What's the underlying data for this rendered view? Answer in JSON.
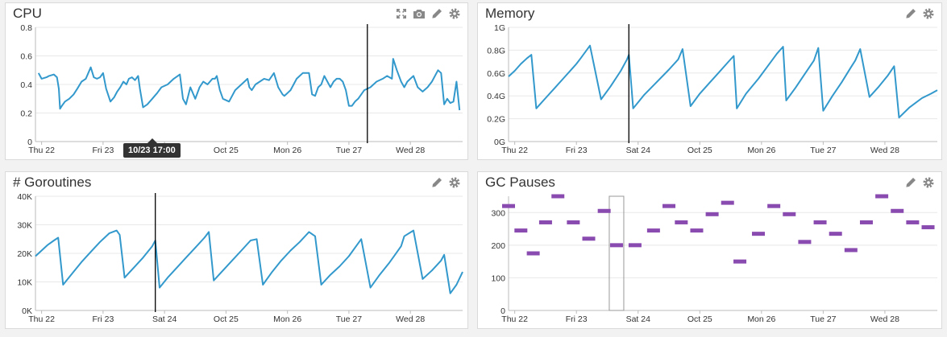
{
  "colors": {
    "line": "#3399cc",
    "bar": "#8a4bb0",
    "grid": "#e8e8e8"
  },
  "panels": {
    "cpu": {
      "title": "CPU",
      "tooltip": "10/23 17:00"
    },
    "memory": {
      "title": "Memory"
    },
    "goroutines": {
      "title": "# Goroutines"
    },
    "gc": {
      "title": "GC Pauses"
    }
  },
  "chart_data": [
    {
      "id": "cpu",
      "type": "line",
      "x_ticks": [
        "Thu 22",
        "Fri 23",
        "Sat 24",
        "Oct 25",
        "Mon 26",
        "Tue 27",
        "Wed 28"
      ],
      "x_tick_days": [
        0,
        1,
        2,
        3,
        4,
        5,
        6
      ],
      "y_ticks": [
        "0",
        "0.2",
        "0.4",
        "0.6",
        "0.8"
      ],
      "y_tick_values": [
        0,
        0.2,
        0.4,
        0.6,
        0.8
      ],
      "ylim": [
        0,
        0.8
      ],
      "xlim_days": [
        -0.1,
        6.85
      ],
      "crosshair_day": 5.3,
      "x_days": [
        -0.05,
        0.0,
        0.08,
        0.12,
        0.2,
        0.25,
        0.28,
        0.3,
        0.33,
        0.38,
        0.45,
        0.52,
        0.58,
        0.65,
        0.72,
        0.8,
        0.85,
        0.9,
        0.95,
        1.0,
        1.05,
        1.12,
        1.18,
        1.23,
        1.28,
        1.33,
        1.38,
        1.42,
        1.47,
        1.52,
        1.57,
        1.6,
        1.65,
        1.72,
        1.8,
        1.88,
        1.95,
        2.05,
        2.15,
        2.25,
        2.3,
        2.35,
        2.42,
        2.5,
        2.57,
        2.63,
        2.7,
        2.78,
        2.82,
        2.85,
        2.9,
        2.95,
        3.05,
        3.15,
        3.25,
        3.3,
        3.35,
        3.38,
        3.42,
        3.48,
        3.55,
        3.62,
        3.7,
        3.78,
        3.85,
        3.92,
        3.95,
        4.0,
        4.05,
        4.15,
        4.25,
        4.35,
        4.4,
        4.45,
        4.5,
        4.55,
        4.6,
        4.7,
        4.75,
        4.8,
        4.85,
        4.9,
        4.95,
        5.0,
        5.05,
        5.1,
        5.15,
        5.2,
        5.25,
        5.35,
        5.45,
        5.55,
        5.62,
        5.7,
        5.72,
        5.78,
        5.85,
        5.9,
        5.95,
        6.0,
        6.05,
        6.12,
        6.2,
        6.28,
        6.35,
        6.4,
        6.45,
        6.5,
        6.55,
        6.6,
        6.65,
        6.7,
        6.75,
        6.8
      ],
      "values": [
        0.48,
        0.44,
        0.45,
        0.46,
        0.47,
        0.45,
        0.37,
        0.23,
        0.25,
        0.28,
        0.3,
        0.33,
        0.37,
        0.42,
        0.44,
        0.52,
        0.45,
        0.44,
        0.45,
        0.48,
        0.37,
        0.28,
        0.31,
        0.35,
        0.38,
        0.42,
        0.4,
        0.44,
        0.45,
        0.43,
        0.46,
        0.37,
        0.24,
        0.26,
        0.3,
        0.34,
        0.38,
        0.4,
        0.44,
        0.47,
        0.3,
        0.26,
        0.38,
        0.3,
        0.38,
        0.42,
        0.4,
        0.44,
        0.44,
        0.46,
        0.36,
        0.3,
        0.28,
        0.36,
        0.4,
        0.42,
        0.44,
        0.38,
        0.36,
        0.4,
        0.42,
        0.44,
        0.43,
        0.48,
        0.38,
        0.33,
        0.32,
        0.34,
        0.36,
        0.44,
        0.48,
        0.48,
        0.33,
        0.32,
        0.38,
        0.4,
        0.46,
        0.38,
        0.42,
        0.44,
        0.44,
        0.42,
        0.36,
        0.25,
        0.25,
        0.28,
        0.3,
        0.33,
        0.36,
        0.38,
        0.42,
        0.44,
        0.46,
        0.44,
        0.58,
        0.5,
        0.42,
        0.38,
        0.42,
        0.44,
        0.46,
        0.38,
        0.35,
        0.38,
        0.42,
        0.46,
        0.5,
        0.48,
        0.26,
        0.3,
        0.27,
        0.28,
        0.42,
        0.22
      ]
    },
    {
      "id": "memory",
      "type": "line",
      "x_ticks": [
        "Thu 22",
        "Fri 23",
        "Sat 24",
        "Oct 25",
        "Mon 26",
        "Tue 27",
        "Wed 28"
      ],
      "x_tick_days": [
        0,
        1,
        2,
        3,
        4,
        5,
        6
      ],
      "y_ticks": [
        "0G",
        "0.2G",
        "0.4G",
        "0.6G",
        "0.8G",
        "1G"
      ],
      "y_tick_values": [
        0,
        0.2,
        0.4,
        0.6,
        0.8,
        1.0
      ],
      "ylim": [
        0,
        1.0
      ],
      "xlim_days": [
        -0.1,
        6.85
      ],
      "crosshair_day": 1.85,
      "x_days": [
        -0.1,
        0.0,
        0.1,
        0.2,
        0.27,
        0.35,
        0.5,
        0.65,
        0.8,
        0.95,
        1.0,
        1.07,
        1.22,
        1.4,
        1.55,
        1.72,
        1.82,
        1.85,
        1.92,
        2.1,
        2.3,
        2.5,
        2.65,
        2.72,
        2.85,
        3.0,
        3.15,
        3.3,
        3.45,
        3.55,
        3.6,
        3.75,
        3.95,
        4.1,
        4.25,
        4.35,
        4.4,
        4.55,
        4.7,
        4.85,
        4.92,
        5.0,
        5.15,
        5.3,
        5.45,
        5.52,
        5.6,
        5.75,
        5.9,
        6.05,
        6.15,
        6.23,
        6.4,
        6.6,
        6.75,
        6.85
      ],
      "values": [
        0.57,
        0.62,
        0.68,
        0.73,
        0.76,
        0.29,
        0.38,
        0.47,
        0.56,
        0.65,
        0.68,
        0.73,
        0.84,
        0.37,
        0.48,
        0.62,
        0.72,
        0.76,
        0.29,
        0.41,
        0.52,
        0.63,
        0.72,
        0.81,
        0.31,
        0.42,
        0.51,
        0.6,
        0.69,
        0.75,
        0.29,
        0.42,
        0.55,
        0.66,
        0.77,
        0.83,
        0.36,
        0.47,
        0.59,
        0.71,
        0.82,
        0.27,
        0.4,
        0.52,
        0.65,
        0.71,
        0.81,
        0.39,
        0.48,
        0.58,
        0.66,
        0.21,
        0.3,
        0.38,
        0.42,
        0.45
      ]
    },
    {
      "id": "goroutines",
      "type": "line",
      "x_ticks": [
        "Thu 22",
        "Fri 23",
        "Sat 24",
        "Oct 25",
        "Mon 26",
        "Tue 27",
        "Wed 28"
      ],
      "x_tick_days": [
        0,
        1,
        2,
        3,
        4,
        5,
        6
      ],
      "y_ticks": [
        "0K",
        "10K",
        "20K",
        "30K",
        "40K"
      ],
      "y_tick_values": [
        0,
        10000,
        20000,
        30000,
        40000
      ],
      "ylim": [
        0,
        40000
      ],
      "xlim_days": [
        -0.1,
        6.85
      ],
      "crosshair_day": 1.85,
      "x_days": [
        -0.1,
        0.0,
        0.1,
        0.2,
        0.27,
        0.35,
        0.5,
        0.65,
        0.8,
        0.95,
        1.1,
        1.22,
        1.27,
        1.35,
        1.5,
        1.65,
        1.8,
        1.85,
        1.92,
        2.05,
        2.2,
        2.35,
        2.5,
        2.65,
        2.72,
        2.8,
        2.95,
        3.1,
        3.25,
        3.4,
        3.5,
        3.6,
        3.75,
        3.9,
        4.05,
        4.2,
        4.35,
        4.45,
        4.55,
        4.7,
        4.85,
        5.0,
        5.1,
        5.2,
        5.35,
        5.5,
        5.65,
        5.75,
        5.85,
        5.9,
        6.05,
        6.2,
        6.35,
        6.5,
        6.55,
        6.65,
        6.75,
        6.85
      ],
      "values": [
        19000,
        21000,
        23000,
        24500,
        25500,
        9000,
        13000,
        17000,
        20500,
        24000,
        27000,
        28000,
        26500,
        11500,
        15000,
        18500,
        22500,
        24500,
        8000,
        11500,
        15000,
        18500,
        22000,
        25500,
        27500,
        10500,
        14000,
        17500,
        21000,
        24500,
        25000,
        9000,
        13500,
        17500,
        21000,
        24000,
        27500,
        26000,
        9000,
        12500,
        15500,
        19000,
        22000,
        25000,
        8000,
        12500,
        16500,
        19500,
        22500,
        26000,
        28000,
        11000,
        14000,
        17500,
        19500,
        6000,
        9000,
        13500
      ]
    },
    {
      "id": "gc",
      "type": "scatter",
      "x_ticks": [
        "Thu 22",
        "Fri 23",
        "Sat 24",
        "Oct 25",
        "Mon 26",
        "Tue 27",
        "Wed 28"
      ],
      "x_tick_days": [
        0,
        1,
        2,
        3,
        4,
        5,
        6
      ],
      "y_ticks": [
        "0",
        "100",
        "200",
        "300"
      ],
      "y_tick_values": [
        0,
        100,
        200,
        300
      ],
      "ylim": [
        0,
        350
      ],
      "xlim_days": [
        -0.1,
        6.85
      ],
      "highlight_day": 1.65,
      "x_days": [
        -0.1,
        0.1,
        0.3,
        0.5,
        0.7,
        0.95,
        1.2,
        1.45,
        1.65,
        1.95,
        2.25,
        2.5,
        2.7,
        2.95,
        3.2,
        3.45,
        3.65,
        3.95,
        4.2,
        4.45,
        4.7,
        4.95,
        5.2,
        5.45,
        5.7,
        5.95,
        6.2,
        6.45,
        6.7
      ],
      "values": [
        320,
        245,
        175,
        270,
        350,
        270,
        220,
        305,
        200,
        200,
        245,
        320,
        270,
        245,
        295,
        330,
        150,
        235,
        320,
        295,
        210,
        270,
        235,
        185,
        270,
        350,
        305,
        270,
        255
      ]
    }
  ]
}
